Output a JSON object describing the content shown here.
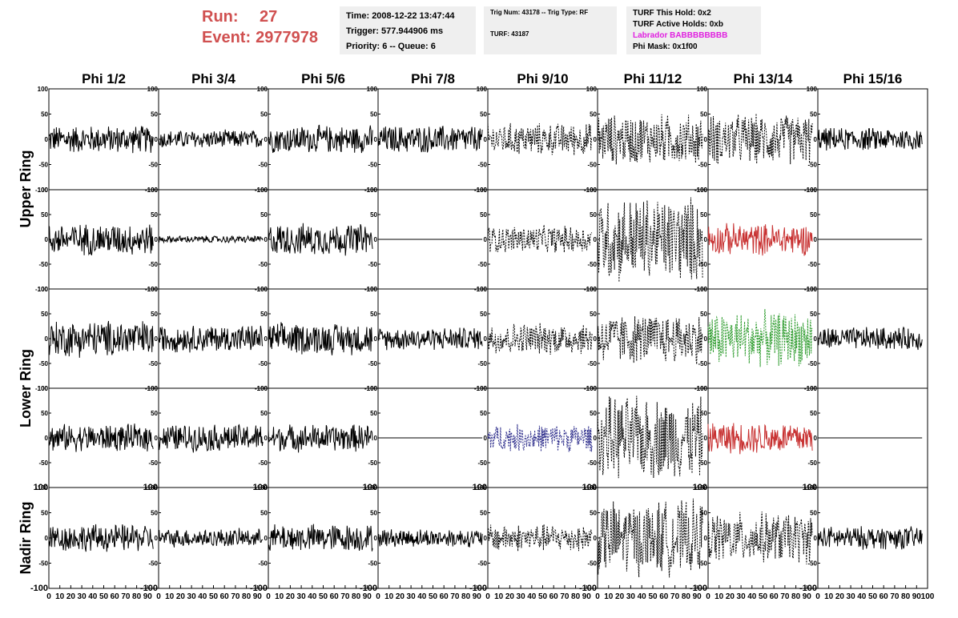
{
  "header": {
    "run_label": "Run:",
    "run_value": "27",
    "event_label": "Event:",
    "event_value": "2977978"
  },
  "info_box_1": {
    "time": "Time: 2008-12-22 13:47:44",
    "trigger": "Trigger: 577.944906 ms",
    "priority": "Priority: 6 -- Queue: 6"
  },
  "info_box_2": {
    "trig": "Trig Num: 43178 -- Trig Type: RF",
    "turf": "TURF: 43187"
  },
  "info_box_3": {
    "this_hold": "TURF This Hold: 0x2",
    "active_holds": "TURF Active Holds: 0xb",
    "labrador": "Labrador BABBBBBBBB",
    "phi_mask": "Phi Mask: 0x1f00"
  },
  "colors": {
    "header_red": "#d05050",
    "labrador_magenta": "#e020e0",
    "trace_black": "#000000",
    "trace_red": "#c83232",
    "trace_green": "#2a9a2a",
    "trace_blue": "#2a2a8a"
  },
  "chart_data": {
    "type": "line",
    "columns": [
      "Phi 1/2",
      "Phi 3/4",
      "Phi 5/6",
      "Phi 7/8",
      "Phi 9/10",
      "Phi 11/12",
      "Phi 13/14",
      "Phi 15/16"
    ],
    "ring_labels": [
      {
        "label": "Upper Ring",
        "rows": [
          0,
          1
        ]
      },
      {
        "label": "Lower Ring",
        "rows": [
          2,
          3
        ]
      },
      {
        "label": "Nadir Ring",
        "rows": [
          4
        ]
      }
    ],
    "ylim": [
      -100,
      100
    ],
    "y_ticks": [
      -100,
      -50,
      0,
      50,
      100
    ],
    "xlim": [
      0,
      100
    ],
    "x_tick_labels": [
      "0",
      "10",
      "20",
      "30",
      "40",
      "50",
      "60",
      "70",
      "80",
      "90",
      "100"
    ],
    "trace_x_range": [
      0,
      95
    ],
    "panels": [
      [
        {
          "amplitude": 30,
          "style": "solid",
          "color": "black"
        },
        {
          "amplitude": 20,
          "style": "solid",
          "color": "black"
        },
        {
          "amplitude": 30,
          "style": "solid",
          "color": "black"
        },
        {
          "amplitude": 30,
          "style": "solid",
          "color": "black"
        },
        {
          "amplitude": 35,
          "style": "dashed",
          "color": "black"
        },
        {
          "amplitude": 55,
          "style": "dashed",
          "color": "black"
        },
        {
          "amplitude": 55,
          "style": "dashed",
          "color": "black"
        },
        {
          "amplitude": 25,
          "style": "solid",
          "color": "black"
        }
      ],
      [
        {
          "amplitude": 35,
          "style": "solid",
          "color": "black"
        },
        {
          "amplitude": 8,
          "style": "solid",
          "color": "black"
        },
        {
          "amplitude": 35,
          "style": "solid",
          "color": "black"
        },
        {
          "amplitude": 0,
          "style": "solid",
          "color": "black"
        },
        {
          "amplitude": 30,
          "style": "dashed",
          "color": "black"
        },
        {
          "amplitude": 95,
          "style": "dashed",
          "color": "black"
        },
        {
          "amplitude": 35,
          "style": "solid",
          "color": "red"
        },
        {
          "amplitude": 0,
          "style": "solid",
          "color": "black"
        }
      ],
      [
        {
          "amplitude": 40,
          "style": "solid",
          "color": "black"
        },
        {
          "amplitude": 30,
          "style": "solid",
          "color": "black"
        },
        {
          "amplitude": 35,
          "style": "solid",
          "color": "black"
        },
        {
          "amplitude": 25,
          "style": "solid",
          "color": "black"
        },
        {
          "amplitude": 35,
          "style": "dashed",
          "color": "black"
        },
        {
          "amplitude": 55,
          "style": "dashed",
          "color": "black"
        },
        {
          "amplitude": 60,
          "style": "dashed",
          "color": "green"
        },
        {
          "amplitude": 25,
          "style": "solid",
          "color": "black"
        }
      ],
      [
        {
          "amplitude": 30,
          "style": "solid",
          "color": "black"
        },
        {
          "amplitude": 30,
          "style": "solid",
          "color": "black"
        },
        {
          "amplitude": 30,
          "style": "solid",
          "color": "black"
        },
        {
          "amplitude": 0,
          "style": "solid",
          "color": "black"
        },
        {
          "amplitude": 30,
          "style": "dashed",
          "color": "blue"
        },
        {
          "amplitude": 90,
          "style": "dashed",
          "color": "black"
        },
        {
          "amplitude": 35,
          "style": "solid",
          "color": "red"
        },
        {
          "amplitude": 0,
          "style": "solid",
          "color": "black"
        }
      ],
      [
        {
          "amplitude": 30,
          "style": "solid",
          "color": "black"
        },
        {
          "amplitude": 20,
          "style": "solid",
          "color": "black"
        },
        {
          "amplitude": 30,
          "style": "solid",
          "color": "black"
        },
        {
          "amplitude": 20,
          "style": "solid",
          "color": "black"
        },
        {
          "amplitude": 30,
          "style": "dashed",
          "color": "black"
        },
        {
          "amplitude": 80,
          "style": "dashed",
          "color": "black"
        },
        {
          "amplitude": 55,
          "style": "dashed",
          "color": "black"
        },
        {
          "amplitude": 25,
          "style": "solid",
          "color": "black"
        }
      ]
    ]
  }
}
